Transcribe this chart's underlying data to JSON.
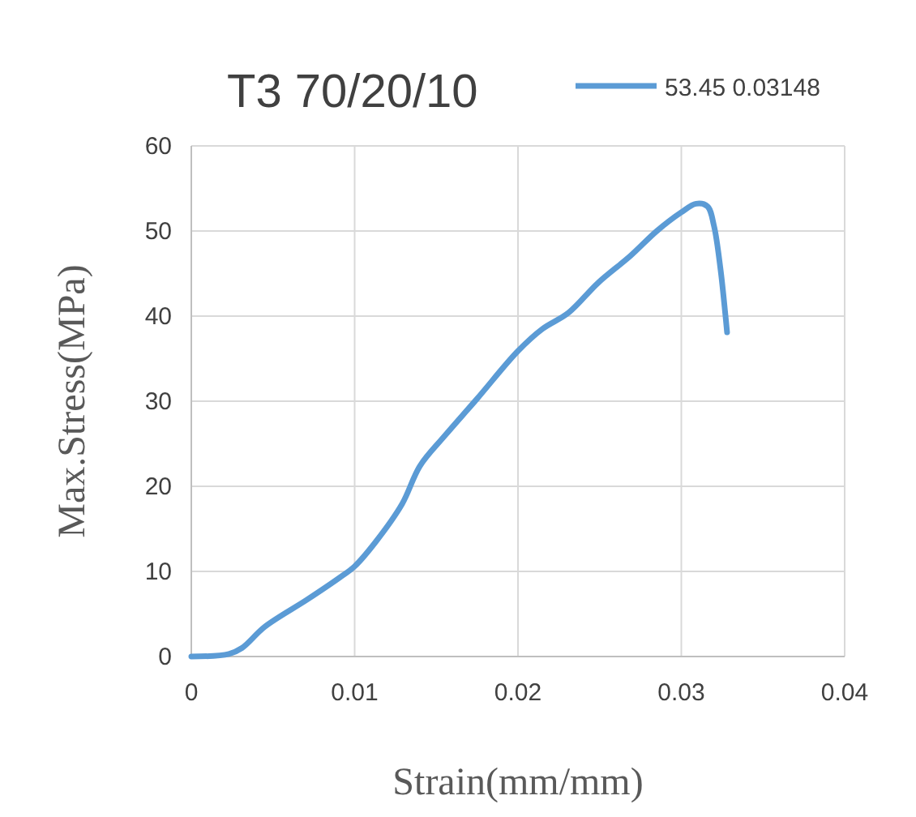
{
  "chart_data": {
    "type": "line",
    "title": "T3 70/20/10",
    "xlabel": "Strain(mm/mm)",
    "ylabel": "Max.Stress(MPa)",
    "x": [
      0,
      0.0023,
      0.0031,
      0.0045,
      0.0071,
      0.0091,
      0.01,
      0.0113,
      0.0129,
      0.014,
      0.0155,
      0.0175,
      0.02,
      0.0215,
      0.0231,
      0.0249,
      0.0269,
      0.0285,
      0.03,
      0.0309,
      0.0316,
      0.032,
      0.0324,
      0.0327,
      0.0328
    ],
    "series": [
      {
        "name": "53.45 0.03148",
        "color": "#5b9bd5",
        "values": [
          0,
          0.3,
          1.0,
          3.5,
          6.7,
          9.3,
          10.6,
          13.5,
          17.9,
          22.4,
          25.9,
          30.3,
          35.9,
          38.5,
          40.4,
          43.9,
          47.1,
          50.0,
          52.2,
          53.2,
          52.9,
          50.6,
          45.5,
          40.1,
          38.1
        ]
      }
    ],
    "xlim": [
      0,
      0.04
    ],
    "xticks": [
      0,
      0.01,
      0.02,
      0.03,
      0.04
    ],
    "ylim": [
      0,
      60
    ],
    "yticks": [
      0,
      10,
      20,
      30,
      40,
      50,
      60
    ],
    "grid": true,
    "legend": "top right",
    "marker": "none",
    "line_style": "solid"
  }
}
